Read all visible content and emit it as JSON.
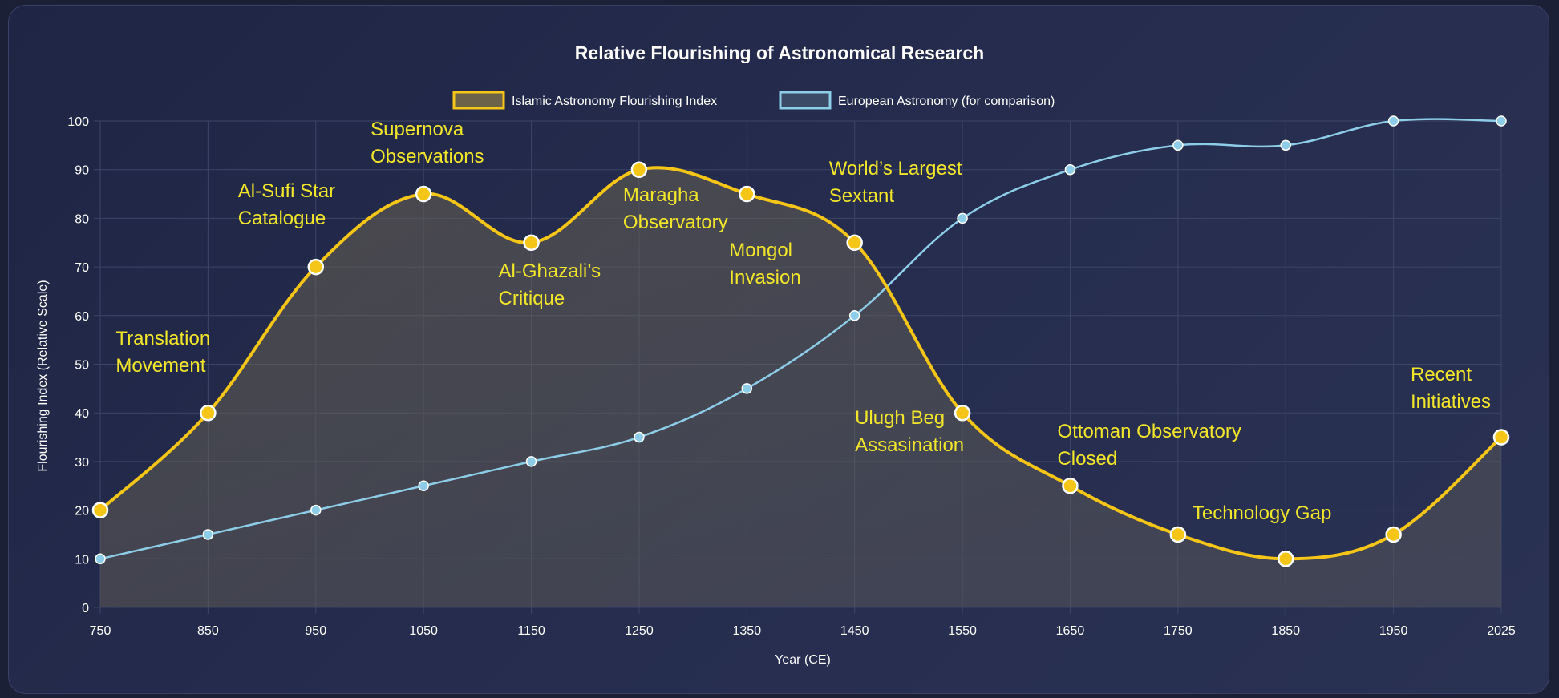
{
  "chart_data": {
    "type": "line",
    "title": "Relative Flourishing of Astronomical Research",
    "xlabel": "Year (CE)",
    "ylabel": "Flourishing Index (Relative Scale)",
    "categories": [
      "750",
      "850",
      "950",
      "1050",
      "1150",
      "1250",
      "1350",
      "1450",
      "1550",
      "1650",
      "1750",
      "1850",
      "1950",
      "2025"
    ],
    "ylim": [
      0,
      100
    ],
    "yticks": [
      0,
      10,
      20,
      30,
      40,
      50,
      60,
      70,
      80,
      90,
      100
    ],
    "grid": true,
    "legend_position": "top",
    "series": [
      {
        "name": "Islamic Astronomy Flourishing Index",
        "values": [
          20,
          40,
          70,
          85,
          75,
          90,
          85,
          75,
          40,
          25,
          15,
          10,
          15,
          35
        ],
        "color": "#f5c518",
        "fill": true
      },
      {
        "name": "European Astronomy (for comparison)",
        "values": [
          10,
          15,
          20,
          25,
          30,
          35,
          45,
          60,
          80,
          90,
          95,
          95,
          100,
          100
        ],
        "color": "#8ecde8",
        "fill": false
      }
    ],
    "annotations": [
      {
        "lines": [
          "Translation",
          "Movement"
        ],
        "x": "850"
      },
      {
        "lines": [
          "Al-Sufi Star",
          "Catalogue"
        ],
        "x": "950"
      },
      {
        "lines": [
          "Supernova",
          "Observations"
        ],
        "x": "1050"
      },
      {
        "lines": [
          "Al-Ghazali’s",
          "Critique"
        ],
        "x": "1150"
      },
      {
        "lines": [
          "Maragha",
          "Observatory"
        ],
        "x": "1250"
      },
      {
        "lines": [
          "Mongol",
          "Invasion"
        ],
        "x": "1350"
      },
      {
        "lines": [
          "World’s Largest",
          "Sextant"
        ],
        "x": "1450"
      },
      {
        "lines": [
          "Ulugh Beg",
          "Assasination"
        ],
        "x": "1550"
      },
      {
        "lines": [
          "Ottoman Observatory",
          "Closed"
        ],
        "x": "1650"
      },
      {
        "lines": [
          "Technology Gap"
        ],
        "x": "1750"
      },
      {
        "lines": [
          "Recent",
          "Initiatives"
        ],
        "x": "2025"
      }
    ]
  }
}
